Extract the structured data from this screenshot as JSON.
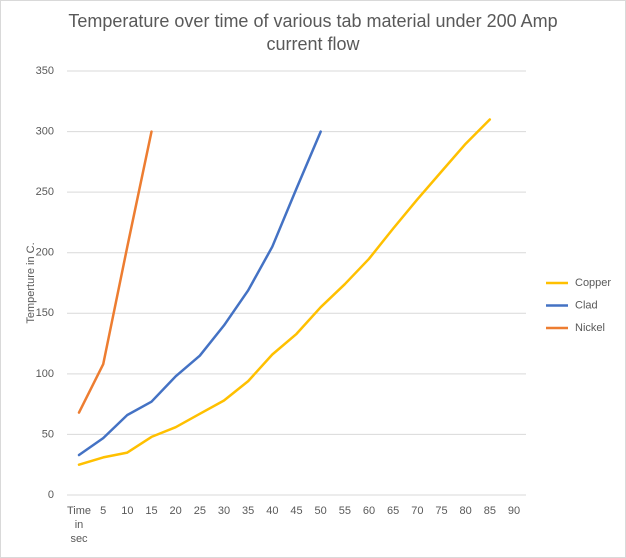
{
  "chart_data": {
    "type": "line",
    "title": "Temperature over time of various tab material under 200 Amp current flow",
    "y_label": "Temperture  in C.",
    "categories": [
      "Time in sec",
      "5",
      "10",
      "15",
      "20",
      "25",
      "30",
      "35",
      "40",
      "45",
      "50",
      "55",
      "60",
      "65",
      "70",
      "75",
      "80",
      "85",
      "90"
    ],
    "series": [
      {
        "name": "Copper",
        "color": "#FFC000",
        "values": [
          25,
          31,
          35,
          48,
          56,
          67,
          78,
          94,
          116,
          133,
          155,
          174,
          195,
          220,
          244,
          267,
          290,
          310,
          null
        ]
      },
      {
        "name": "Clad",
        "color": "#4472C4",
        "values": [
          33,
          47,
          66,
          77,
          98,
          115,
          140,
          169,
          205,
          253,
          300,
          null,
          null,
          null,
          null,
          null,
          null,
          null,
          null
        ]
      },
      {
        "name": "Nickel",
        "color": "#ED7D31",
        "values": [
          68,
          108,
          205,
          300,
          null,
          null,
          null,
          null,
          null,
          null,
          null,
          null,
          null,
          null,
          null,
          null,
          null,
          null,
          null
        ]
      }
    ],
    "ylim": [
      0,
      350
    ],
    "yticks": [
      0,
      50,
      100,
      150,
      200,
      250,
      300,
      350
    ],
    "grid": true,
    "legend": "right"
  }
}
